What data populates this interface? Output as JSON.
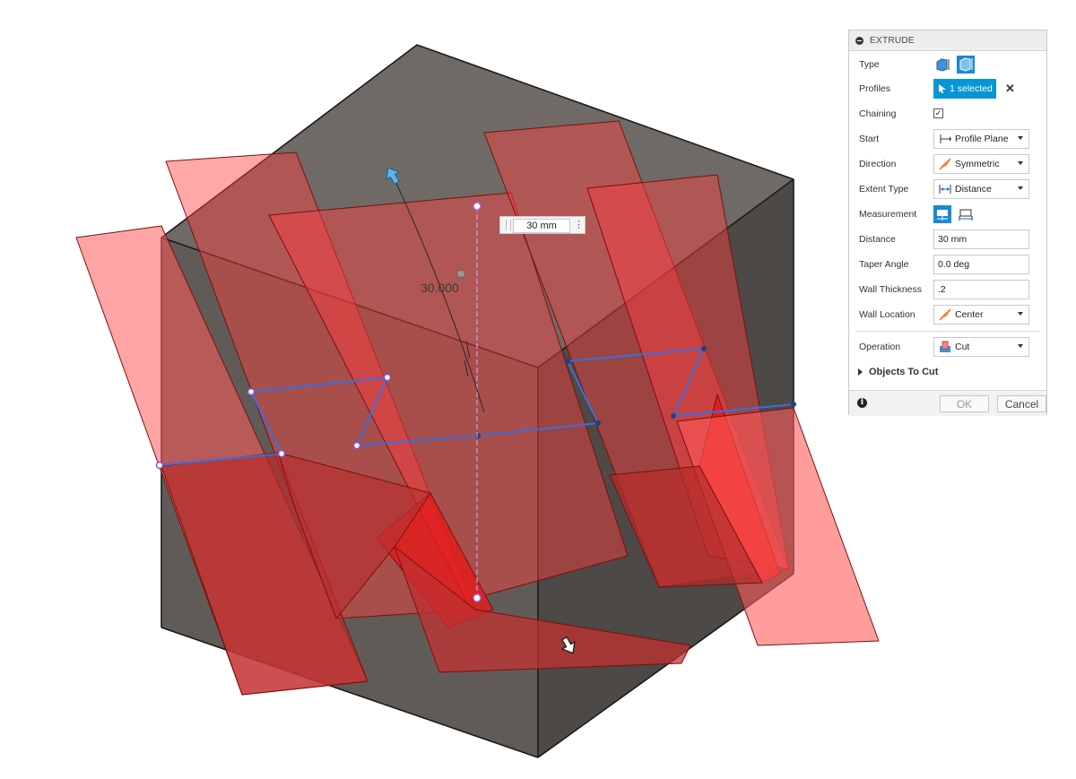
{
  "viewport": {
    "dimension_value": "30 mm",
    "dimension_label": "30.000"
  },
  "panel": {
    "title": "EXTRUDE",
    "rows": {
      "type": {
        "label": "Type"
      },
      "profiles": {
        "label": "Profiles",
        "selection": "1 selected",
        "clear": "✕"
      },
      "chaining": {
        "label": "Chaining",
        "checked": "✓"
      },
      "start": {
        "label": "Start",
        "value": "Profile Plane"
      },
      "direction": {
        "label": "Direction",
        "value": "Symmetric"
      },
      "extent_type": {
        "label": "Extent Type",
        "value": "Distance"
      },
      "measurement": {
        "label": "Measurement"
      },
      "distance": {
        "label": "Distance",
        "value": "30 mm"
      },
      "taper_angle": {
        "label": "Taper Angle",
        "value": "0.0 deg"
      },
      "wall_thickness": {
        "label": "Wall Thickness",
        "value": ".2"
      },
      "wall_location": {
        "label": "Wall Location",
        "value": "Center"
      },
      "operation": {
        "label": "Operation",
        "value": "Cut"
      }
    },
    "objects_to_cut": "Objects To Cut",
    "info": "i",
    "ok": "OK",
    "cancel": "Cancel"
  },
  "colors": {
    "accent": "#0696d7",
    "body_dark": "#4f4b48",
    "body_mid": "#6c6661",
    "fin_light": "#ff6f6f",
    "fin_dark": "#b43a3a",
    "sketch_blue": "#3c6fd8"
  }
}
